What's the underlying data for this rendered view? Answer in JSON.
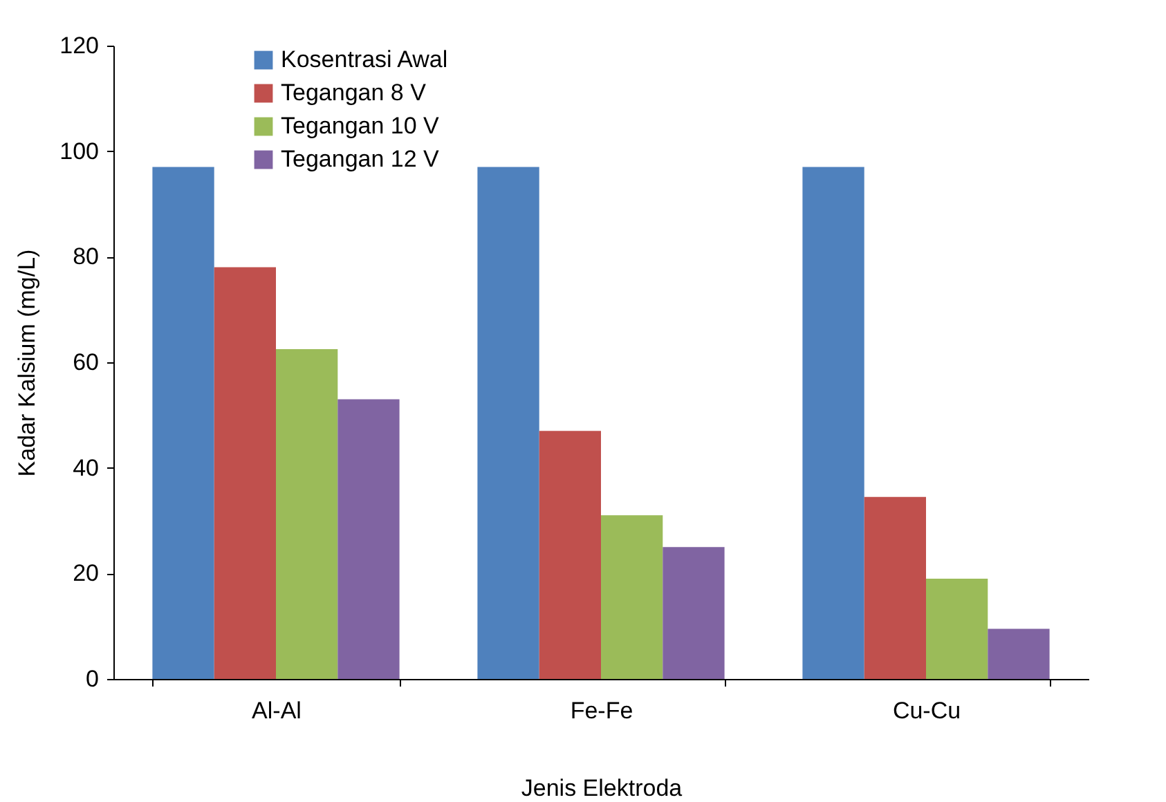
{
  "chart_data": {
    "type": "bar",
    "xlabel": "Jenis Elektroda",
    "ylabel": "Kadar Kalsium (mg/L)",
    "categories": [
      "Al-Al",
      "Fe-Fe",
      "Cu-Cu"
    ],
    "series": [
      {
        "name": "Kosentrasi Awal",
        "color": "#4f81bd",
        "values": [
          97,
          97,
          97
        ]
      },
      {
        "name": "Tegangan 8 V",
        "color": "#c0504d",
        "values": [
          78,
          47,
          34.5
        ]
      },
      {
        "name": "Tegangan 10 V",
        "color": "#9bbb59",
        "values": [
          62.5,
          31,
          19
        ]
      },
      {
        "name": "Tegangan 12 V",
        "color": "#8064a2",
        "values": [
          53,
          25,
          9.5
        ]
      }
    ],
    "ylim": [
      0,
      120
    ],
    "yticks": [
      0,
      20,
      40,
      60,
      80,
      100,
      120
    ],
    "grid": false,
    "legend": "top left"
  }
}
